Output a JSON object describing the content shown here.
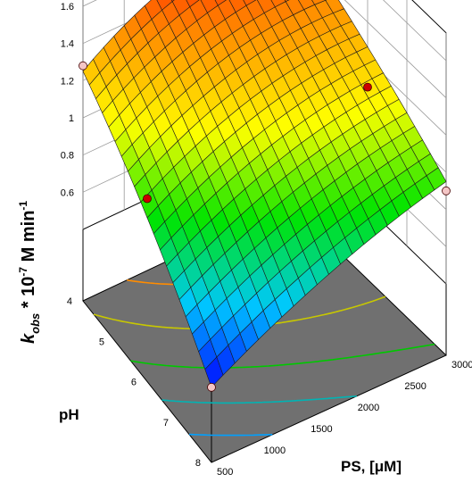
{
  "chart_data": {
    "type": "surface3d",
    "title": "",
    "xlabel": "PS, [μM]",
    "ylabel": "pH",
    "zlabel": {
      "main": "k",
      "sub": "obs",
      "rest": " * 10",
      "sup1": "-7",
      "rest2": " M min",
      "sup2": "-1"
    },
    "x_ticks": [
      500,
      1000,
      1500,
      2000,
      2500,
      3000
    ],
    "y_ticks": [
      4,
      5,
      6,
      7,
      8
    ],
    "z_ticks": [
      0.6,
      0.8,
      1,
      1.2,
      1.4,
      1.6
    ],
    "z_tick_labels": [
      "0.6",
      "0.8",
      "1",
      "1.2",
      "1.4",
      "1.6"
    ],
    "xlim": [
      500,
      3000
    ],
    "ylim": [
      4,
      8
    ],
    "zlim": [
      0.4,
      1.6
    ],
    "grid": true,
    "colormap": [
      "#0000ff",
      "#00c8ff",
      "#00e400",
      "#ffff00",
      "#ff8c00",
      "#ff0000"
    ],
    "corner_values": [
      {
        "x": 500,
        "y": 4,
        "z": 1.25
      },
      {
        "x": 3000,
        "y": 4,
        "z": 1.52
      },
      {
        "x": 500,
        "y": 8,
        "z": 0.42
      },
      {
        "x": 3000,
        "y": 8,
        "z": 0.95
      }
    ],
    "design_points": [
      {
        "x": 500,
        "y": 4,
        "z": 1.28,
        "color": "#f4c6c6"
      },
      {
        "x": 1750,
        "y": 4,
        "z": 1.56,
        "color": "#cc0000"
      },
      {
        "x": 3000,
        "y": 4,
        "z": 1.5,
        "color": "#cc0000"
      },
      {
        "x": 500,
        "y": 6,
        "z": 1.0,
        "color": "#cc0000"
      },
      {
        "x": 3000,
        "y": 6,
        "z": 1.05,
        "color": "#cc0000"
      },
      {
        "x": 500,
        "y": 8,
        "z": 0.42,
        "color": "#f4c6c6"
      },
      {
        "x": 3000,
        "y": 8,
        "z": 0.9,
        "color": "#f4c6c6"
      }
    ],
    "contour_levels": [
      {
        "z": 1.4,
        "color": "#ff8c00"
      },
      {
        "z": 1.2,
        "color": "#c8c800"
      },
      {
        "z": 1.0,
        "color": "#00c800"
      },
      {
        "z": 0.8,
        "color": "#00b4b4"
      },
      {
        "z": 0.6,
        "color": "#00a0ff"
      }
    ]
  }
}
